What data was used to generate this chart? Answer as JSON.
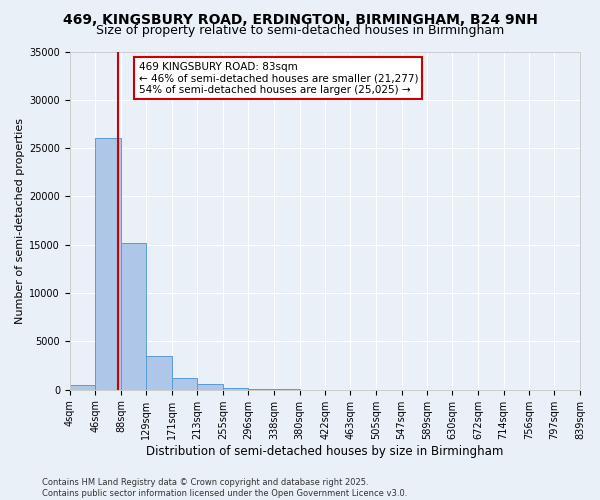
{
  "title": "469, KINGSBURY ROAD, ERDINGTON, BIRMINGHAM, B24 9NH",
  "subtitle": "Size of property relative to semi-detached houses in Birmingham",
  "xlabel": "Distribution of semi-detached houses by size in Birmingham",
  "ylabel": "Number of semi-detached properties",
  "bin_edges": [
    4,
    46,
    88,
    129,
    171,
    213,
    255,
    296,
    338,
    380,
    422,
    463,
    505,
    547,
    589,
    630,
    672,
    714,
    756,
    797,
    839
  ],
  "bin_counts": [
    500,
    26100,
    15200,
    3500,
    1200,
    600,
    150,
    50,
    30,
    20,
    10,
    5,
    3,
    2,
    1,
    1,
    0,
    0,
    0,
    0
  ],
  "bar_color": "#aec6e8",
  "bar_edge_color": "#5b9bd5",
  "property_size": 83,
  "annotation_line1": "469 KINGSBURY ROAD: 83sqm",
  "annotation_line2": "← 46% of semi-detached houses are smaller (21,277)",
  "annotation_line3": "54% of semi-detached houses are larger (25,025) →",
  "annotation_box_color": "#ffffff",
  "annotation_box_edge_color": "#cc0000",
  "vline_color": "#cc0000",
  "ylim": [
    0,
    35000
  ],
  "yticks": [
    0,
    5000,
    10000,
    15000,
    20000,
    25000,
    30000,
    35000
  ],
  "bg_color": "#eaf0f8",
  "grid_color": "#ffffff",
  "footnote": "Contains HM Land Registry data © Crown copyright and database right 2025.\nContains public sector information licensed under the Open Government Licence v3.0.",
  "title_fontsize": 10,
  "subtitle_fontsize": 9,
  "tick_label_fontsize": 7,
  "ylabel_fontsize": 8,
  "xlabel_fontsize": 8.5,
  "annotation_fontsize": 7.5,
  "footnote_fontsize": 6
}
